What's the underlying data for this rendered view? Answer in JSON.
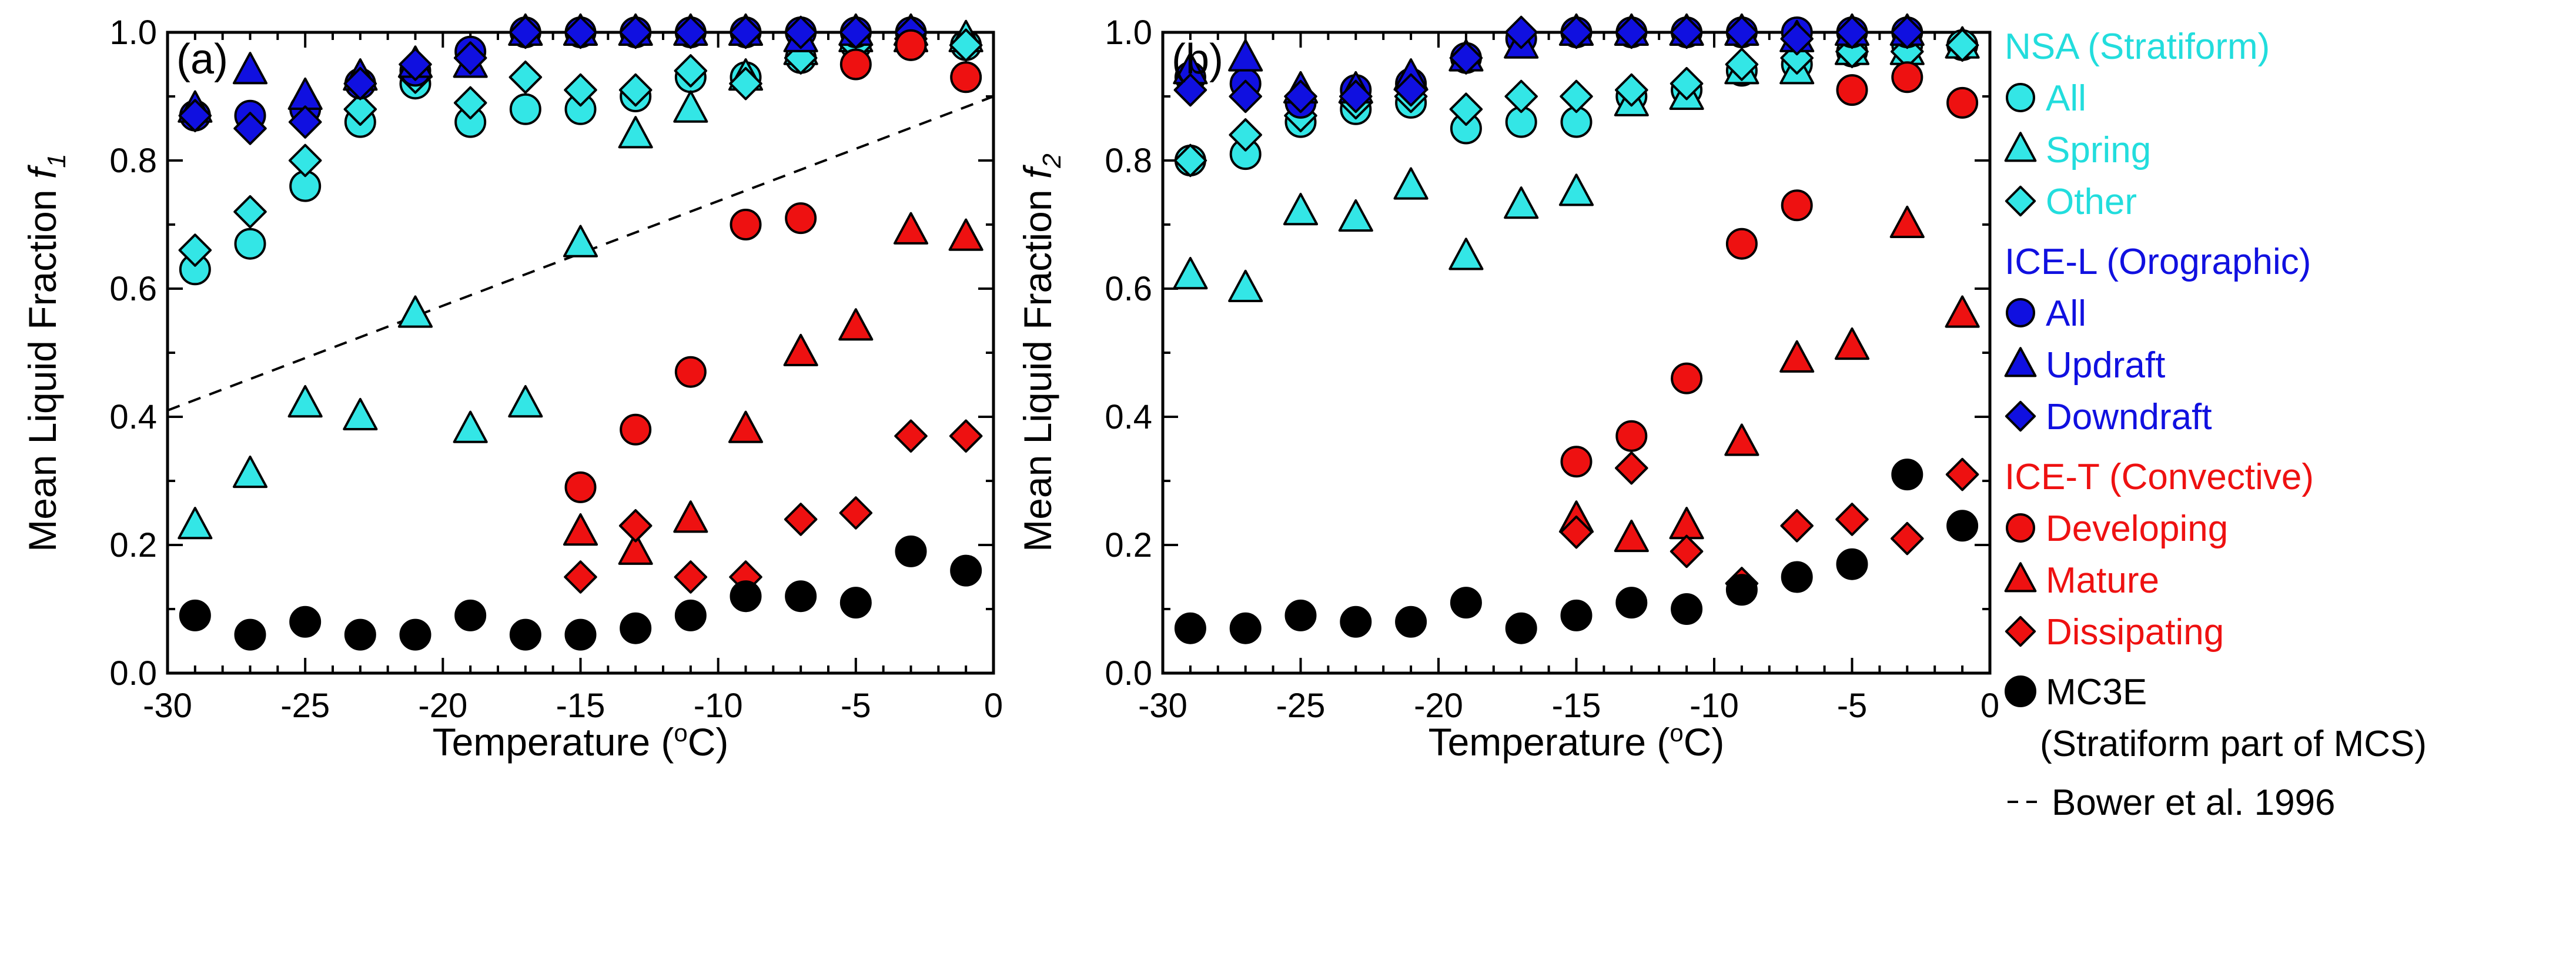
{
  "chart_data": [
    {
      "type": "scatter",
      "panel_label": "(a)",
      "xlabel": "Temperature (",
      "xlabel_sup": "o",
      "xlabel_tail": "C)",
      "ylabel": "Mean Liquid Fraction ",
      "ylabel_var": "f",
      "ylabel_sub": "1",
      "xlim": [
        -30,
        0
      ],
      "ylim": [
        0,
        1.0
      ],
      "xticks": [
        -30,
        -25,
        -20,
        -15,
        -10,
        -5,
        0
      ],
      "xtick_labels": [
        "-30",
        "-25",
        "-20",
        "-15",
        "-10",
        "-5",
        "0"
      ],
      "yticks": [
        0,
        0.2,
        0.4,
        0.6,
        0.8,
        1.0
      ],
      "ytick_labels": [
        "0.0",
        "0.2",
        "0.4",
        "0.6",
        "0.8",
        "1.0"
      ],
      "reference_line": {
        "name": "Bower et al. 1996",
        "x": [
          -30,
          0
        ],
        "y": [
          0.41,
          0.9
        ]
      },
      "series": [
        {
          "name": "NSA All",
          "marker": "circle",
          "color": "#33e6e6",
          "x": [
            -29,
            -27,
            -25,
            -23,
            -21,
            -19,
            -17,
            -15,
            -13,
            -11,
            -9,
            -7,
            -5,
            -3,
            -1
          ],
          "y": [
            0.63,
            0.67,
            0.76,
            0.86,
            0.92,
            0.86,
            0.88,
            0.88,
            0.9,
            0.93,
            0.93,
            0.96,
            0.98,
            0.98,
            0.98
          ]
        },
        {
          "name": "NSA Spring",
          "marker": "triangle",
          "color": "#33e6e6",
          "x": [
            -29,
            -27,
            -25,
            -23,
            -21,
            -19,
            -17,
            -15,
            -13,
            -11,
            -9,
            -7,
            -5,
            -3,
            -1
          ],
          "y": [
            0.23,
            0.31,
            0.42,
            0.4,
            0.56,
            0.38,
            0.42,
            0.67,
            0.84,
            0.88,
            0.93,
            0.97,
            0.99,
            0.99,
            0.99
          ]
        },
        {
          "name": "NSA Other",
          "marker": "diamond",
          "color": "#33e6e6",
          "x": [
            -29,
            -27,
            -25,
            -23,
            -21,
            -19,
            -17,
            -15,
            -13,
            -11,
            -9,
            -7,
            -5,
            -3,
            -1
          ],
          "y": [
            0.66,
            0.72,
            0.8,
            0.88,
            0.93,
            0.89,
            0.93,
            0.91,
            0.91,
            0.94,
            0.92,
            0.96,
            0.98,
            0.99,
            0.98
          ]
        },
        {
          "name": "ICE-L All",
          "marker": "circle",
          "color": "#1010e0",
          "x": [
            -29,
            -27,
            -25,
            -23,
            -21,
            -19,
            -17,
            -15,
            -13,
            -11,
            -9,
            -7,
            -5,
            -3
          ],
          "y": [
            0.87,
            0.87,
            0.88,
            0.92,
            0.94,
            0.97,
            1.0,
            1.0,
            1.0,
            1.0,
            1.0,
            1.0,
            1.0,
            1.0
          ]
        },
        {
          "name": "ICE-L Updraft",
          "marker": "triangle",
          "color": "#1010e0",
          "x": [
            -29,
            -27,
            -25,
            -23,
            -21,
            -19,
            -17,
            -15,
            -13,
            -11,
            -9,
            -7,
            -5,
            -3
          ],
          "y": [
            0.88,
            0.94,
            0.9,
            0.93,
            0.95,
            0.95,
            1.0,
            1.0,
            1.0,
            1.0,
            1.0,
            0.99,
            1.0,
            1.0
          ]
        },
        {
          "name": "ICE-L Downdraft",
          "marker": "diamond",
          "color": "#1010e0",
          "x": [
            -29,
            -27,
            -25,
            -23,
            -21,
            -19,
            -17,
            -15,
            -13,
            -11,
            -9,
            -7,
            -5,
            -3
          ],
          "y": [
            0.87,
            0.85,
            0.86,
            0.92,
            0.95,
            0.96,
            1.0,
            1.0,
            1.0,
            1.0,
            1.0,
            1.0,
            1.0,
            1.0
          ]
        },
        {
          "name": "ICE-T Developing",
          "marker": "circle",
          "color": "#ee1111",
          "x": [
            -15,
            -13,
            -11,
            -9,
            -7,
            -5,
            -3,
            -1
          ],
          "y": [
            0.29,
            0.38,
            0.47,
            0.7,
            0.71,
            0.95,
            0.98,
            0.93
          ]
        },
        {
          "name": "ICE-T Mature",
          "marker": "triangle",
          "color": "#ee1111",
          "x": [
            -15,
            -13,
            -11,
            -9,
            -7,
            -5,
            -3,
            -1
          ],
          "y": [
            0.22,
            0.19,
            0.24,
            0.38,
            0.5,
            0.54,
            0.69,
            0.68
          ]
        },
        {
          "name": "ICE-T Dissipating",
          "marker": "diamond",
          "color": "#ee1111",
          "x": [
            -15,
            -13,
            -11,
            -9,
            -7,
            -5,
            -3,
            -1
          ],
          "y": [
            0.15,
            0.23,
            0.15,
            0.15,
            0.24,
            0.25,
            0.37,
            0.37
          ]
        },
        {
          "name": "MC3E",
          "marker": "circle",
          "color": "#000000",
          "x": [
            -29,
            -27,
            -25,
            -23,
            -21,
            -19,
            -17,
            -15,
            -13,
            -11,
            -9,
            -7,
            -5,
            -3,
            -1
          ],
          "y": [
            0.09,
            0.06,
            0.08,
            0.06,
            0.06,
            0.09,
            0.06,
            0.06,
            0.07,
            0.09,
            0.12,
            0.12,
            0.11,
            0.19,
            0.16
          ]
        }
      ]
    },
    {
      "type": "scatter",
      "panel_label": "(b)",
      "xlabel": "Temperature (",
      "xlabel_sup": "o",
      "xlabel_tail": "C)",
      "ylabel": "Mean Liquid Fraction ",
      "ylabel_var": "f",
      "ylabel_sub": "2",
      "xlim": [
        -30,
        0
      ],
      "ylim": [
        0,
        1.0
      ],
      "xticks": [
        -30,
        -25,
        -20,
        -15,
        -10,
        -5,
        0
      ],
      "xtick_labels": [
        "-30",
        "-25",
        "-20",
        "-15",
        "-10",
        "-5",
        "0"
      ],
      "yticks": [
        0,
        0.2,
        0.4,
        0.6,
        0.8,
        1.0
      ],
      "ytick_labels": [
        "0.0",
        "0.2",
        "0.4",
        "0.6",
        "0.8",
        "1.0"
      ],
      "series": [
        {
          "name": "NSA All",
          "marker": "circle",
          "color": "#33e6e6",
          "x": [
            -29,
            -27,
            -25,
            -23,
            -21,
            -19,
            -17,
            -15,
            -13,
            -11,
            -9,
            -7,
            -5,
            -3,
            -1
          ],
          "y": [
            0.8,
            0.81,
            0.86,
            0.88,
            0.89,
            0.85,
            0.86,
            0.86,
            0.9,
            0.91,
            0.94,
            0.95,
            0.97,
            0.98,
            0.98
          ]
        },
        {
          "name": "NSA Spring",
          "marker": "triangle",
          "color": "#33e6e6",
          "x": [
            -29,
            -27,
            -25,
            -23,
            -21,
            -19,
            -17,
            -15,
            -13,
            -11,
            -9,
            -7,
            -5,
            -3,
            -1
          ],
          "y": [
            0.62,
            0.6,
            0.72,
            0.71,
            0.76,
            0.65,
            0.73,
            0.75,
            0.89,
            0.9,
            0.94,
            0.94,
            0.97,
            0.97,
            0.98
          ]
        },
        {
          "name": "NSA Other",
          "marker": "diamond",
          "color": "#33e6e6",
          "x": [
            -29,
            -27,
            -25,
            -23,
            -21,
            -19,
            -17,
            -15,
            -13,
            -11,
            -9,
            -7,
            -5,
            -3,
            -1
          ],
          "y": [
            0.8,
            0.84,
            0.87,
            0.89,
            0.9,
            0.88,
            0.9,
            0.9,
            0.91,
            0.92,
            0.95,
            0.96,
            0.97,
            0.97,
            0.98
          ]
        },
        {
          "name": "ICE-L All",
          "marker": "circle",
          "color": "#1010e0",
          "x": [
            -29,
            -27,
            -25,
            -23,
            -21,
            -19,
            -17,
            -15,
            -13,
            -11,
            -9,
            -7,
            -5,
            -3
          ],
          "y": [
            0.93,
            0.92,
            0.89,
            0.91,
            0.92,
            0.96,
            0.99,
            1.0,
            1.0,
            1.0,
            1.0,
            1.0,
            1.0,
            1.0
          ]
        },
        {
          "name": "ICE-L Updraft",
          "marker": "triangle",
          "color": "#1010e0",
          "x": [
            -29,
            -27,
            -25,
            -23,
            -21,
            -19,
            -17,
            -15,
            -13,
            -11,
            -9,
            -7,
            -5,
            -3
          ],
          "y": [
            0.94,
            0.96,
            0.91,
            0.91,
            0.93,
            0.96,
            0.98,
            1.0,
            1.0,
            1.0,
            1.0,
            0.99,
            1.0,
            1.0
          ]
        },
        {
          "name": "ICE-L Downdraft",
          "marker": "diamond",
          "color": "#1010e0",
          "x": [
            -29,
            -27,
            -25,
            -23,
            -21,
            -19,
            -17,
            -15,
            -13,
            -11,
            -9,
            -7,
            -5,
            -3
          ],
          "y": [
            0.91,
            0.9,
            0.9,
            0.9,
            0.91,
            0.96,
            1.0,
            1.0,
            1.0,
            1.0,
            1.0,
            0.99,
            1.0,
            1.0
          ]
        },
        {
          "name": "ICE-T Developing",
          "marker": "circle",
          "color": "#ee1111",
          "x": [
            -15,
            -13,
            -11,
            -9,
            -7,
            -5,
            -3,
            -1
          ],
          "y": [
            0.33,
            0.37,
            0.46,
            0.67,
            0.73,
            0.91,
            0.93,
            0.89
          ]
        },
        {
          "name": "ICE-T Mature",
          "marker": "triangle",
          "color": "#ee1111",
          "x": [
            -15,
            -13,
            -11,
            -9,
            -7,
            -5,
            -3,
            -1
          ],
          "y": [
            0.24,
            0.21,
            0.23,
            0.36,
            0.49,
            0.51,
            0.7,
            0.56
          ]
        },
        {
          "name": "ICE-T Dissipating",
          "marker": "diamond",
          "color": "#ee1111",
          "x": [
            -15,
            -13,
            -11,
            -9,
            -7,
            -5,
            -3,
            -1
          ],
          "y": [
            0.22,
            0.32,
            0.19,
            0.14,
            0.23,
            0.24,
            0.21,
            0.31
          ]
        },
        {
          "name": "MC3E",
          "marker": "circle",
          "color": "#000000",
          "x": [
            -29,
            -27,
            -25,
            -23,
            -21,
            -19,
            -17,
            -15,
            -13,
            -11,
            -9,
            -7,
            -5,
            -3,
            -1
          ],
          "y": [
            0.07,
            0.07,
            0.09,
            0.08,
            0.08,
            0.11,
            0.07,
            0.09,
            0.11,
            0.1,
            0.13,
            0.15,
            0.17,
            0.31,
            0.23
          ]
        }
      ]
    }
  ],
  "legend": {
    "groups": [
      {
        "title": "NSA (Stratiform)",
        "color": "#22dddd",
        "items": [
          {
            "marker": "circle",
            "label": "All"
          },
          {
            "marker": "triangle",
            "label": "Spring"
          },
          {
            "marker": "diamond",
            "label": "Other"
          }
        ]
      },
      {
        "title": "ICE-L (Orographic)",
        "color": "#1010e0",
        "items": [
          {
            "marker": "circle",
            "label": "All"
          },
          {
            "marker": "triangle",
            "label": "Updraft"
          },
          {
            "marker": "diamond",
            "label": "Downdraft"
          }
        ]
      },
      {
        "title": "ICE-T (Convective)",
        "color": "#ee1111",
        "items": [
          {
            "marker": "circle",
            "label": "Developing"
          },
          {
            "marker": "triangle",
            "label": "Mature"
          },
          {
            "marker": "diamond",
            "label": "Dissipating"
          }
        ]
      }
    ],
    "mc3e": {
      "label": "MC3E",
      "sublabel": "(Stratiform part of MCS)",
      "color": "#000000"
    },
    "bower": {
      "label": "Bower et al. 1996"
    }
  }
}
